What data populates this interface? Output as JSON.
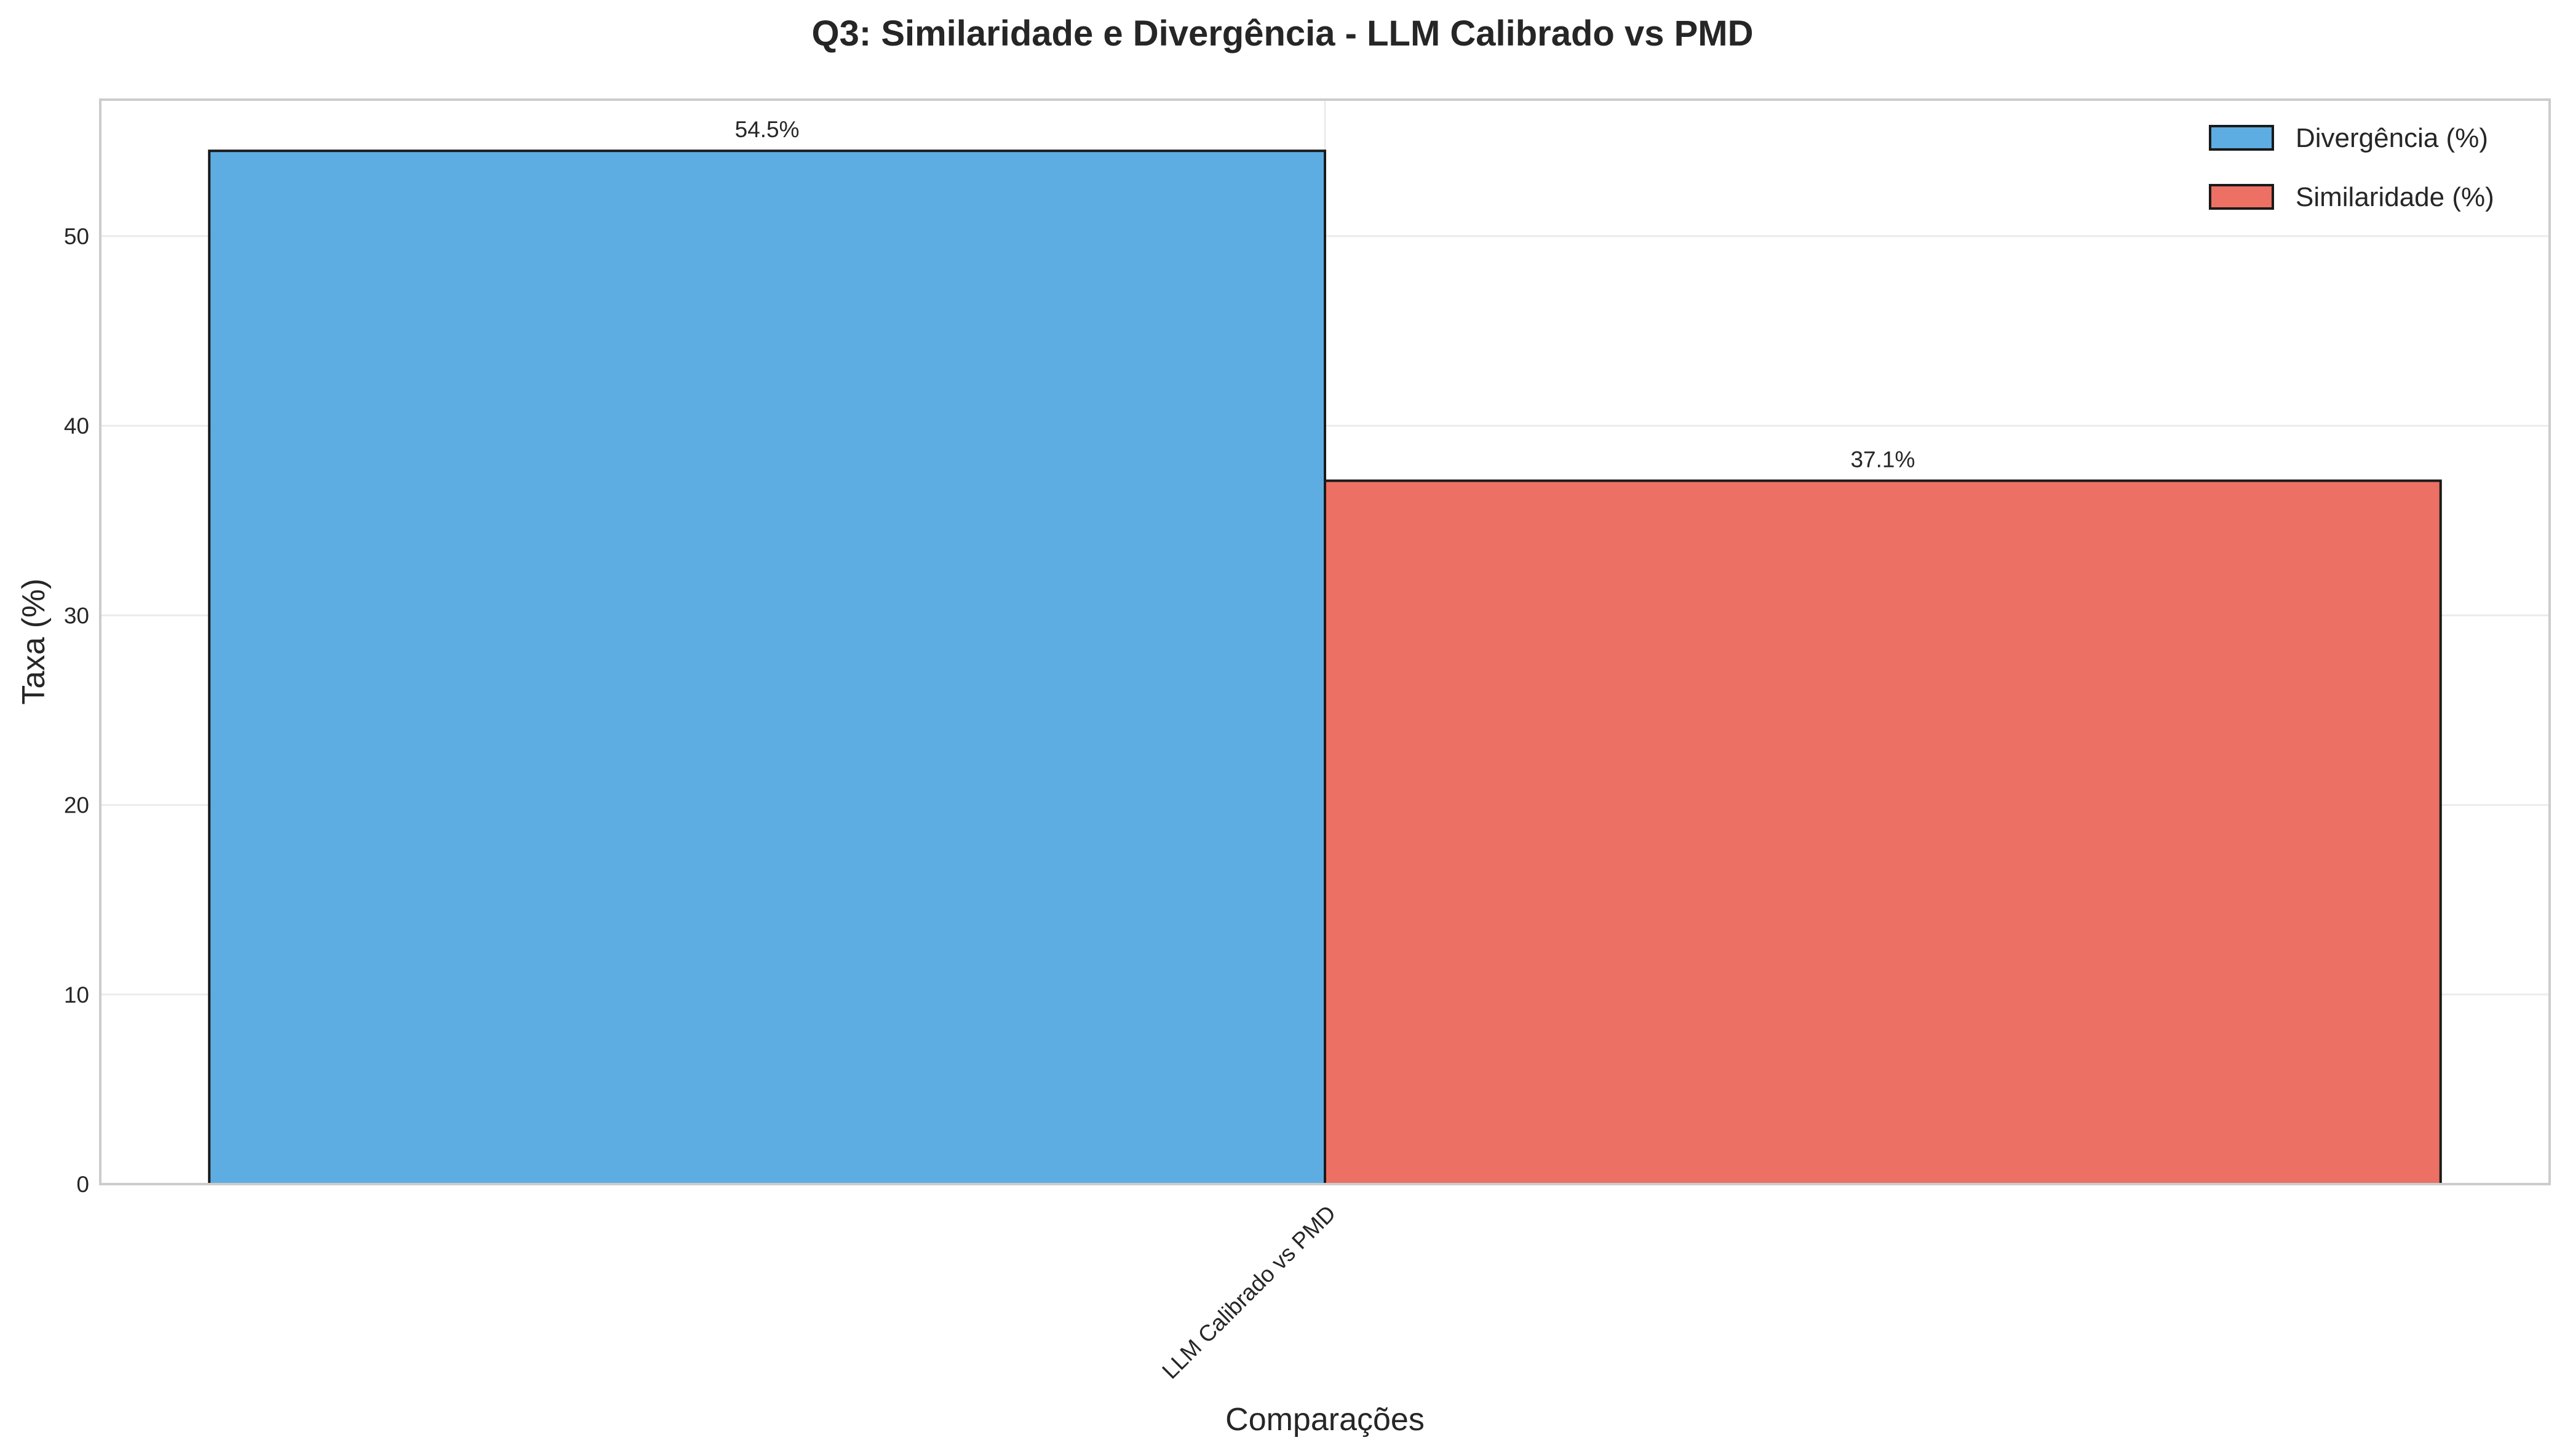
{
  "chart_data": {
    "type": "bar",
    "title": "Q3: Similaridade e Divergência - LLM Calibrado vs PMD",
    "xlabel": "Comparações",
    "ylabel": "Taxa (%)",
    "categories": [
      "LLM Calibrado vs PMD"
    ],
    "series": [
      {
        "name": "Divergência (%)",
        "values": [
          54.5
        ],
        "labels": [
          "54.5%"
        ],
        "color": "#5dade2"
      },
      {
        "name": "Similaridade (%)",
        "values": [
          37.1
        ],
        "labels": [
          "37.1%"
        ],
        "color": "#ec7063"
      }
    ],
    "ylim": [
      0,
      57.2
    ],
    "yticks": [
      0,
      10,
      20,
      30,
      40,
      50
    ],
    "grid": true,
    "legend_position": "top-right"
  }
}
